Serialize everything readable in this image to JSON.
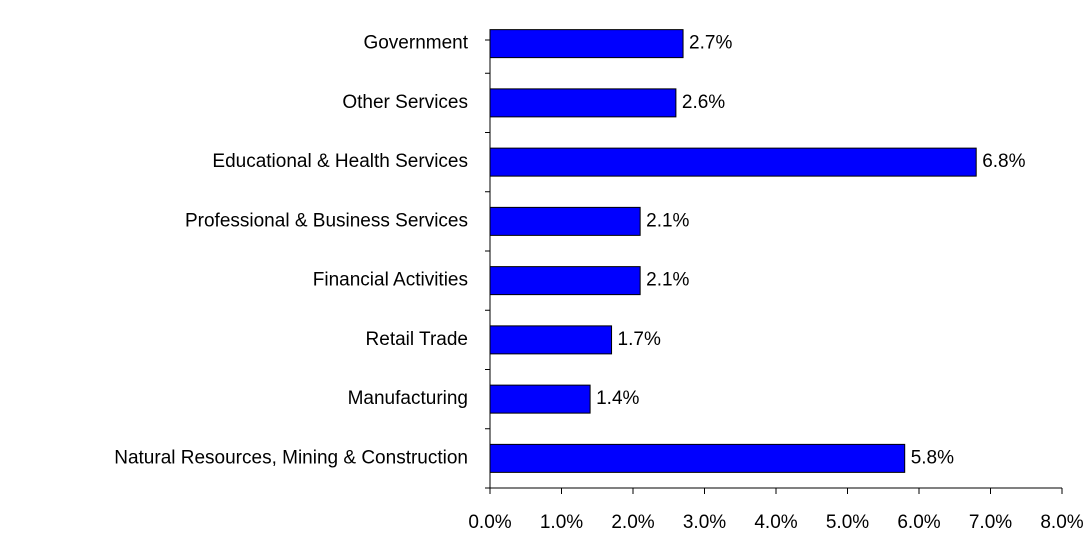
{
  "chart_data": {
    "type": "bar",
    "orientation": "horizontal",
    "categories": [
      "Government",
      "Other Services",
      "Educational & Health Services",
      "Professional & Business Services",
      "Financial Activities",
      "Retail Trade",
      "Manufacturing",
      "Natural Resources, Mining & Construction"
    ],
    "values": [
      2.7,
      2.6,
      6.8,
      2.1,
      2.1,
      1.7,
      1.4,
      5.8
    ],
    "value_labels": [
      "2.7%",
      "2.6%",
      "6.8%",
      "2.1%",
      "2.1%",
      "1.7%",
      "1.4%",
      "5.8%"
    ],
    "color": "#0000ff",
    "xlim": [
      0,
      8
    ],
    "xticks": [
      {
        "value": 0,
        "label": "0.0%"
      },
      {
        "value": 1,
        "label": "1.0%"
      },
      {
        "value": 2,
        "label": "2.0%"
      },
      {
        "value": 3,
        "label": "3.0%"
      },
      {
        "value": 4,
        "label": "4.0%"
      },
      {
        "value": 5,
        "label": "5.0%"
      },
      {
        "value": 6,
        "label": "6.0%"
      },
      {
        "value": 7,
        "label": "7.0%"
      },
      {
        "value": 8,
        "label": "8.0%"
      }
    ],
    "grid": false
  }
}
